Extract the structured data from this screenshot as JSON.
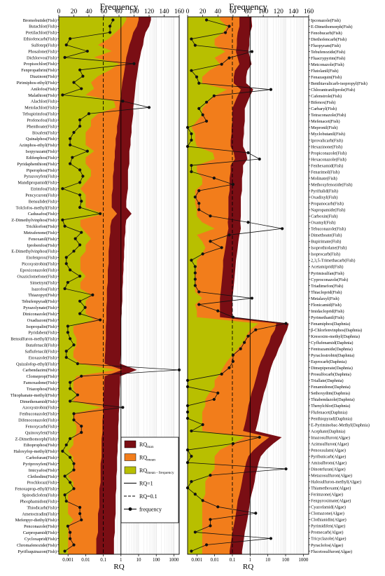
{
  "chart_data": [
    {
      "type": "area",
      "panel": "left",
      "top_axis_title": "Frequency",
      "top_axis_ticks": [
        0,
        20,
        40,
        60,
        80,
        100,
        120,
        140,
        160
      ],
      "bottom_axis_title": "RQ",
      "bottom_axis_ticks": [
        "0.001",
        "0.01",
        "0.1",
        "1",
        "10",
        "100",
        "1000"
      ],
      "bottom_axis_range": [
        0.0003,
        2000
      ],
      "top_axis_range": [
        0,
        160
      ],
      "grid": "vertical",
      "categories": [
        "Bromobutide(Fish)",
        "Butachlor(Fish)",
        "Pretilachlor(Fish)",
        "Ethiofencarb(Fish)",
        "Sulfotep(Fish)",
        "Phosalone(Fish)",
        "Dichlorvos(Fish)",
        "Propisochlor(Fish)",
        "Fenpropathrin(Fish)",
        "Diazinon(Fish)",
        "Pirimiphos-ethyl(Fish)",
        "Anilofos(Fish)",
        "Malathion(Fish)",
        "Alachlor(Fish)",
        "Metolachlor(Fish)",
        "Tebupirimfos(Fish)",
        "Profenofos(Fish)",
        "Phenthoate(Fish)",
        "Bixafen(Fish)",
        "Quinalphos(Fish)",
        "Azinphos-ethyl(Fish)",
        "Isopyrazam(Fish)",
        "Edifenphos(Fish)",
        "Pyridaphenthion(Fish)",
        "Piperophos(Fish)",
        "Pyrazoxyfen(Fish)",
        "Mandipropamid(Fish)",
        "Etrimfos(Fish)",
        "Pencycuron(Fish)",
        "Bensulide(Fish)",
        "Tolclofos-methyl(Fish)",
        "Cadusafos(Fish)",
        "Z-Dimethylvinphos(Fish)",
        "Trichlorfon(Fish)",
        "Metrafenone(Fish)",
        "Fenoxanil(Fish)",
        "Iprobenfos(Fish)",
        "E-Dimethylvinphos(Fish)",
        "Etofenprox(Fish)",
        "Picoxystrobin(Fish)",
        "Epoxiconazole(Fish)",
        "Oxaziclomefone(Fish)",
        "Simetryn(Fish)",
        "Isazofos(Fish)",
        "Thiazopyr(Fish)",
        "Tebufenpyrad(Fish)",
        "Pyrazolynate(Fish)",
        "Diniconazole(Fish)",
        "Oxadiazon(Fish)",
        "Isopropalin(Fish)",
        "Pyridaben(Fish)",
        "Bensulfuron-methyl(Fish)",
        "Butafenacil(Fish)",
        "Saflufenacil(Fish)",
        "Etoxazole(Fish)",
        "Quizalofop-ethyl(Fish)",
        "Carbendazim(Fish)",
        "Clomeprop(Fish)",
        "Famoxadone(Fish)",
        "Triazophos(Fish)",
        "Thiophanate-methyl(Fish)",
        "Dimethenamid(Fish)",
        "Azoxystrobin(Fish)",
        "Fenbuconazole(Fish)",
        "Difenoconazole(Fish)",
        "Fenoxycarb(Fish)",
        "Quinoxyfen(Fish)",
        "Z-Dimethomorph(Fish)",
        "Ethoprophos(Fish)",
        "Haloxyfop-methyl(Fish)",
        "Carbofuran(Fish)",
        "Pyriproxyfen(Fish)",
        "Imicyafos(Fish)",
        "Clethodim(Fish)",
        "Prochloraz(Fish)",
        "Fenoxaprop-ethyl(Fish)",
        "Spirodiclofen(Fish)",
        "Phosphamidon(Fish)",
        "Thiodicarb(Fish)",
        "Ametoctradin(Fish)",
        "Mefenpyr-diethyl(Fish)",
        "Penconazole(Fish)",
        "Carpropamid(Fish)",
        "Cycloxaprid(Fish)",
        "Chromafenozide(Fish)",
        "Pyrifluquinazon(Fish)"
      ],
      "series": [
        {
          "name": "RQ_max",
          "values": [
            50,
            40,
            25,
            20,
            18,
            14,
            12,
            10,
            9,
            8,
            7,
            6.5,
            6,
            5.5,
            5,
            5,
            4.5,
            4,
            4,
            3.5,
            3.5,
            3,
            3,
            3,
            2.5,
            2.5,
            2.5,
            2.5,
            2.2,
            2,
            2,
            4,
            2,
            1.8,
            1.8,
            1.6,
            1.6,
            1.5,
            1.5,
            1.4,
            1.4,
            1.3,
            1.3,
            1.2,
            1.2,
            1.2,
            1.1,
            1.1,
            1,
            1,
            1,
            1,
            1,
            1,
            0.95,
            0.9,
            8,
            0.9,
            0.9,
            0.85,
            0.85,
            0.8,
            0.8,
            0.75,
            0.75,
            0.7,
            0.7,
            0.7,
            0.65,
            0.65,
            0.6,
            0.6,
            0.6,
            0.55,
            0.55,
            0.55,
            0.5,
            0.5,
            0.5,
            0.5,
            0.45,
            0.45,
            0.45,
            0.4,
            0.4,
            0.4
          ]
        },
        {
          "name": "RQ_mean",
          "values": [
            10,
            8,
            5,
            4,
            3,
            2.5,
            2,
            1.8,
            1.6,
            1.4,
            1.2,
            1.1,
            1,
            0.9,
            0.8,
            0.8,
            0.7,
            0.6,
            0.6,
            0.5,
            0.5,
            0.45,
            0.45,
            0.4,
            0.4,
            0.35,
            0.35,
            0.35,
            0.3,
            0.3,
            0.3,
            0.6,
            0.3,
            0.25,
            0.25,
            0.22,
            0.22,
            0.2,
            0.2,
            0.2,
            0.18,
            0.18,
            0.18,
            0.16,
            0.16,
            0.16,
            0.15,
            0.15,
            0.15,
            0.14,
            0.14,
            0.14,
            0.13,
            0.13,
            0.12,
            0.12,
            1.2,
            0.12,
            0.11,
            0.11,
            0.1,
            0.1,
            0.1,
            0.1,
            0.09,
            0.09,
            0.09,
            0.08,
            0.08,
            0.08,
            0.08,
            0.07,
            0.07,
            0.07,
            0.07,
            0.06,
            0.06,
            0.06,
            0.06,
            0.05,
            0.05,
            0.05,
            0.05,
            0.04,
            0.04,
            0.04
          ]
        },
        {
          "name": "RQ_mean-frequency",
          "values": [
            2,
            1.2,
            0.5,
            0.2,
            0.05,
            0.3,
            0.03,
            0.8,
            0.25,
            0.05,
            0.02,
            0.03,
            0.01,
            0.4,
            0.5,
            0.05,
            0.02,
            0.02,
            0.01,
            0.01,
            0.01,
            0.03,
            0.01,
            0.01,
            0.02,
            0.02,
            0.01,
            0.005,
            0.01,
            0.01,
            0.01,
            0.1,
            0.005,
            0.005,
            0.01,
            0.02,
            0.01,
            0.01,
            0.005,
            0.005,
            0.005,
            0.01,
            0.005,
            0.005,
            0.02,
            0.01,
            0.01,
            0.01,
            0.03,
            0.002,
            0.002,
            0.003,
            0.003,
            0.002,
            0.002,
            0.005,
            0.5,
            0.003,
            0.002,
            0.002,
            0.003,
            0.002,
            0.08,
            0.002,
            0.002,
            0.003,
            0.003,
            0.002,
            0.002,
            0.001,
            0.002,
            0.002,
            0.002,
            0.001,
            0.002,
            0.002,
            0.001,
            0.001,
            0.001,
            0.001,
            0.002,
            0.001,
            0.001,
            0.001,
            0.001,
            0.001
          ]
        },
        {
          "name": "frequency",
          "values": [
            72,
            68,
            68,
            15,
            10,
            38,
            8,
            100,
            28,
            32,
            20,
            30,
            5,
            85,
            120,
            40,
            28,
            28,
            20,
            15,
            15,
            38,
            18,
            15,
            28,
            32,
            28,
            5,
            28,
            30,
            28,
            55,
            5,
            8,
            30,
            22,
            28,
            20,
            10,
            10,
            15,
            28,
            12,
            8,
            45,
            28,
            35,
            28,
            55,
            12,
            12,
            15,
            20,
            10,
            10,
            25,
            160,
            30,
            15,
            15,
            25,
            15,
            85,
            20,
            20,
            30,
            30,
            15,
            10,
            5,
            15,
            20,
            20,
            8,
            15,
            20,
            8,
            10,
            28,
            28,
            30,
            12,
            15,
            15,
            20,
            8
          ]
        }
      ]
    },
    {
      "type": "area",
      "panel": "right",
      "top_axis_title": "Frequency",
      "top_axis_ticks": [
        0,
        20,
        40,
        60,
        80,
        100,
        120,
        140,
        160
      ],
      "bottom_axis_title": "RQ",
      "bottom_axis_ticks": [
        "0.001",
        "0.01",
        "0.1",
        "1",
        "10",
        "100",
        "1000"
      ],
      "bottom_axis_range": [
        0.0003,
        2000
      ],
      "top_axis_range": [
        0,
        160
      ],
      "grid": "vertical",
      "categories": [
        "Ipconazole(Fish)",
        "E-Dimethomorph(Fish)",
        "Fenobucarb(Fish)",
        "Diethofencarb(Fish)",
        "Fluopyram(Fish)",
        "Tebufenozide(Fish)",
        "Fluacrypyrim(Fish)",
        "Metconazole(Fish)",
        "Flutolanil(Fish)",
        "Fenazaquin(Fish)",
        "Benthiavalicarb-isopropyl(Fish)",
        "Chlorantraniliprole(Fish)",
        "Cafenstrole(Fish)",
        "Bifenox(Fish)",
        "Carbaryl(Fish)",
        "Tetraconazole(Fish)",
        "Mefenacet(Fish)",
        "Mepronil(Fish)",
        "Myclobutanil(Fish)",
        "Iprovalicarb(Fish)",
        "Hexazinone(Fish)",
        "Propiconazole(Fish)",
        "Hexaconazole(Fish)",
        "Fenhexamid(Fish)",
        "Fenarimol(Fish)",
        "Molinate(Fish)",
        "Methoxyfenozide(Fish)",
        "Pyriftalid(Fish)",
        "Oxadixyl(Fish)",
        "Propanocarb(Fish)",
        "Napropamide(Fish)",
        "Carboxin(Fish)",
        "Oxamyl(Fish)",
        "Tebuconazole(Fish)",
        "Dimethoate(Fish)",
        "Bupirimate(Fish)",
        "Isoprothiolane(Fish)",
        "Isoprocarb(Fish)",
        "2,3,5-Trimethacarb(Fish)",
        "Acetamiprid(Fish)",
        "Pyrimisulfan(Fish)",
        "Cyproconazole(Fish)",
        "Triadimefon(Fish)",
        "Thiacloprid(Fish)",
        "Metalaxyl(Fish)",
        "Flonicamid(Fish)",
        "Imidacloprid(Fish)",
        "Pyrimethanil(Fish)",
        "Fenamiphos(Daphnia)",
        "β-Chlorfenvinphos(Daphnia)",
        "Kresoxim-methyl(Daphnia)",
        "Cyflufenamid(Daphnia)",
        "Fentrazamide(Daphnia)",
        "Pyraclostrobin(Daphnia)",
        "Esprocarb(Daphnia)",
        "Dimepiperate(Daphnia)",
        "Prosulfocarb(Daphnia)",
        "Triallate(Daphnia)",
        "Fenamidone(Daphnia)",
        "Sethoxydim(Daphnia)",
        "Thiabendazole(Daphnia)",
        "Thenylchlor(Daphnia)",
        "Flufenacet(Daphnia)",
        "Penthiopyrad(Daphnia)",
        "E-Pyriminobac-Methyl(Daphnia)",
        "Acephate(Daphnia)",
        "Imazosulfuron(Algae)",
        "Azimsulfuron(Algae)",
        "Penoxsulam(Algae)",
        "Pyributicarb(Algae)",
        "Amisulbrom(Algae)",
        "Dinotefuran(Algae)",
        "Metazosulfuron(Algae)",
        "Halosulfuron-methyl(Algae)",
        "Thiamethoxam(Algae)",
        "Ferimzone(Algae)",
        "Fenpyroximate(Algae)",
        "Cyazofamid(Algae)",
        "Clomazone(Algae)",
        "Clothianidin(Algae)",
        "Pyrimidifen(Algae)",
        "Promecarb(Algae)",
        "Tricyclazole(Algae)",
        "Pyraclofos(Algae)",
        "Flucetosulfuron(Algae)"
      ],
      "series": [
        {
          "name": "RQ_max",
          "values": [
            1.2,
            1.3,
            1,
            0.9,
            0.9,
            0.8,
            1,
            1.2,
            0.7,
            0.6,
            0.6,
            1.5,
            1,
            0.7,
            0.5,
            0.5,
            0.5,
            0.45,
            0.45,
            0.4,
            0.4,
            0.6,
            0.7,
            0.4,
            0.4,
            0.35,
            0.35,
            0.35,
            0.3,
            0.3,
            0.3,
            0.3,
            0.28,
            0.3,
            0.25,
            0.22,
            0.2,
            0.18,
            0.16,
            0.15,
            0.14,
            0.13,
            0.12,
            0.11,
            0.1,
            0.1,
            0.1,
            0.1,
            150,
            120,
            80,
            60,
            40,
            30,
            20,
            15,
            12,
            10,
            8,
            6,
            5,
            4,
            3.5,
            3,
            2.5,
            2,
            60,
            20,
            8,
            4,
            3,
            2.5,
            2,
            1.8,
            1.5,
            1.2,
            1,
            0.9,
            0.8,
            0.7,
            0.6,
            0.5,
            0.45,
            0.4,
            0.35
          ]
        },
        {
          "name": "RQ_mean",
          "values": [
            0.25,
            0.25,
            0.2,
            0.18,
            0.18,
            0.16,
            0.2,
            0.25,
            0.14,
            0.12,
            0.12,
            0.3,
            0.2,
            0.14,
            0.1,
            0.1,
            0.1,
            0.09,
            0.09,
            0.08,
            0.08,
            0.12,
            0.14,
            0.08,
            0.08,
            0.07,
            0.07,
            0.07,
            0.06,
            0.06,
            0.06,
            0.06,
            0.055,
            0.06,
            0.05,
            0.045,
            0.04,
            0.035,
            0.03,
            0.03,
            0.028,
            0.026,
            0.024,
            0.022,
            0.02,
            0.02,
            0.02,
            0.02,
            30,
            25,
            15,
            12,
            8,
            6,
            4,
            3,
            2.5,
            2,
            1.6,
            1.2,
            1,
            0.8,
            0.7,
            0.6,
            0.5,
            0.4,
            12,
            4,
            1.6,
            0.8,
            0.6,
            0.5,
            0.4,
            0.35,
            0.3,
            0.25,
            0.2,
            0.18,
            0.16,
            0.14,
            0.12,
            0.1,
            0.09,
            0.08,
            0.07
          ]
        },
        {
          "name": "RQ_mean-frequency",
          "values": [
            0.02,
            0.05,
            0.03,
            0.01,
            0.01,
            0.04,
            0.01,
            0.02,
            0.005,
            0.002,
            0.002,
            0.05,
            0.01,
            0.004,
            0.002,
            0.002,
            0.001,
            0.0005,
            0.0008,
            0.0008,
            0.001,
            0.008,
            0.01,
            0.001,
            0.001,
            0.002,
            0.002,
            0.0008,
            0.0008,
            0.0008,
            0.001,
            0.001,
            0.002,
            0.01,
            0.001,
            0.002,
            0.003,
            0.002,
            0.001,
            0.001,
            0.0008,
            0.0008,
            0.0008,
            0.0008,
            0.002,
            0.0008,
            0.001,
            0.001,
            3,
            1,
            0.6,
            0.4,
            0.2,
            0.1,
            0.05,
            0.03,
            0.02,
            0.01,
            0.01,
            0.005,
            0.003,
            0.003,
            0.002,
            0.002,
            0.002,
            0.002,
            0.5,
            0.1,
            0.02,
            0.01,
            0.01,
            0.01,
            0.005,
            0.003,
            0.003,
            0.003,
            0.002,
            0.002,
            0.002,
            0.002,
            0.002,
            0.002,
            0.002,
            0.002,
            0.002
          ]
        },
        {
          "name": "frequency",
          "values": [
            25,
            55,
            50,
            5,
            10,
            85,
            55,
            45,
            5,
            12,
            15,
            110,
            35,
            25,
            15,
            20,
            25,
            0,
            5,
            5,
            0,
            80,
            95,
            5,
            5,
            35,
            60,
            15,
            10,
            15,
            15,
            30,
            80,
            125,
            55,
            30,
            45,
            20,
            5,
            10,
            10,
            10,
            10,
            15,
            85,
            15,
            40,
            60,
            130,
            90,
            80,
            75,
            70,
            60,
            60,
            55,
            45,
            0,
            0,
            40,
            35,
            0,
            0,
            0,
            20,
            5,
            95,
            60,
            0,
            5,
            0,
            130,
            30,
            5,
            0,
            10,
            20,
            40,
            90,
            30,
            30,
            10,
            110,
            25,
            5
          ]
        }
      ]
    }
  ],
  "legend": {
    "items": [
      {
        "label": "RQ",
        "sub": "max",
        "color": "#7a0e14",
        "kind": "box"
      },
      {
        "label": "RQ",
        "sub": "mean",
        "color": "#f27d1b",
        "kind": "box"
      },
      {
        "label": "RQ",
        "sub": "mean - frequency",
        "color": "#b8bf00",
        "kind": "box"
      },
      {
        "label": "RQ=1",
        "kind": "solid"
      },
      {
        "label": "RQ=0.1",
        "kind": "dash"
      },
      {
        "label": "frequency",
        "kind": "marker"
      }
    ]
  },
  "colors": {
    "max": "#7a0e14",
    "mean": "#f27d1b",
    "freq": "#b8bf00",
    "line": "#111111",
    "grid": "#d8d8d8"
  }
}
